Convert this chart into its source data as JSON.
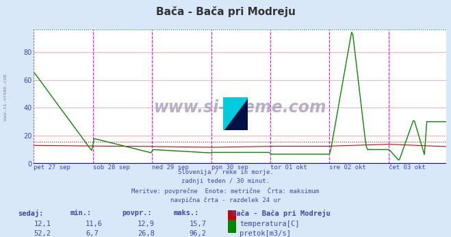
{
  "title": "Bača - Bača pri Modreju",
  "background_color": "#d8e8f8",
  "plot_bg_color": "#ffffff",
  "xlabel_color": "#4444aa",
  "ylabel_color": "#4444aa",
  "text_color": "#4444aa",
  "temp_color": "#cc0000",
  "flow_color": "#008800",
  "vline_color": "#ff00ff",
  "hline_color": "#0000cc",
  "ylim": [
    0,
    96
  ],
  "yticks": [
    0,
    20,
    40,
    60,
    80
  ],
  "n_points": 336,
  "temp_max": 15.7,
  "flow_max": 96.2,
  "x_labels": [
    "pet 27 sep",
    "sob 28 sep",
    "ned 29 sep",
    "pon 30 sep",
    "tor 01 okt",
    "sre 02 okt",
    "čet 03 okt"
  ],
  "subtitle_lines": [
    "Slovenija / reke in morje.",
    "zadnji teden / 30 minut.",
    "Meritve: povprečne  Enote: metrične  Črta: maksimum",
    "navpična črta - razdelek 24 ur"
  ],
  "legend_title": "Bača - Bača pri Modreju",
  "legend_items": [
    "temperatura[C]",
    "pretok[m3/s]"
  ],
  "table_headers": [
    "sedaj:",
    "min.:",
    "povpr.:",
    "maks.:"
  ],
  "table_row1": [
    "12,1",
    "11,6",
    "12,9",
    "15,7"
  ],
  "table_row2": [
    "52,2",
    "6,7",
    "26,8",
    "96,2"
  ],
  "watermark": "www.si-vreme.com"
}
